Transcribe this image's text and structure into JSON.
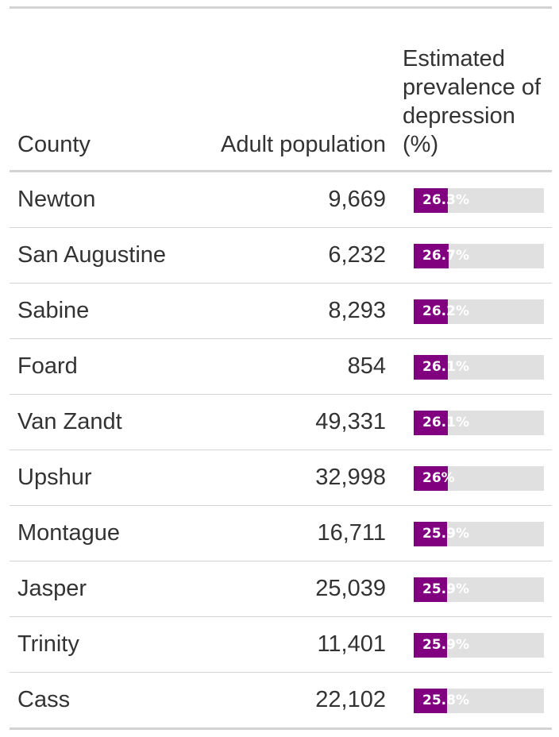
{
  "headers": {
    "county": "County",
    "population": "Adult population",
    "prevalence": "Estimated prevalence of depression (%)"
  },
  "colors": {
    "bar_fill": "#800080",
    "bar_track": "#e0e0e0",
    "rule": "#d3d3d3",
    "text": "#333333"
  },
  "rows": [
    {
      "county": "Newton",
      "population": "9,669",
      "prevalence": 26.3,
      "prevalence_label": "26.3%"
    },
    {
      "county": "San Augustine",
      "population": "6,232",
      "prevalence": 26.7,
      "prevalence_label": "26.7%"
    },
    {
      "county": "Sabine",
      "population": "8,293",
      "prevalence": 26.2,
      "prevalence_label": "26.2%"
    },
    {
      "county": "Foard",
      "population": "854",
      "prevalence": 26.1,
      "prevalence_label": "26.1%"
    },
    {
      "county": "Van Zandt",
      "population": "49,331",
      "prevalence": 26.1,
      "prevalence_label": "26.1%"
    },
    {
      "county": "Upshur",
      "population": "32,998",
      "prevalence": 26.0,
      "prevalence_label": "26%"
    },
    {
      "county": "Montague",
      "population": "16,711",
      "prevalence": 25.9,
      "prevalence_label": "25.9%"
    },
    {
      "county": "Jasper",
      "population": "25,039",
      "prevalence": 25.9,
      "prevalence_label": "25.9%"
    },
    {
      "county": "Trinity",
      "population": "11,401",
      "prevalence": 25.9,
      "prevalence_label": "25.9%"
    },
    {
      "county": "Cass",
      "population": "22,102",
      "prevalence": 25.8,
      "prevalence_label": "25.8%"
    }
  ]
}
